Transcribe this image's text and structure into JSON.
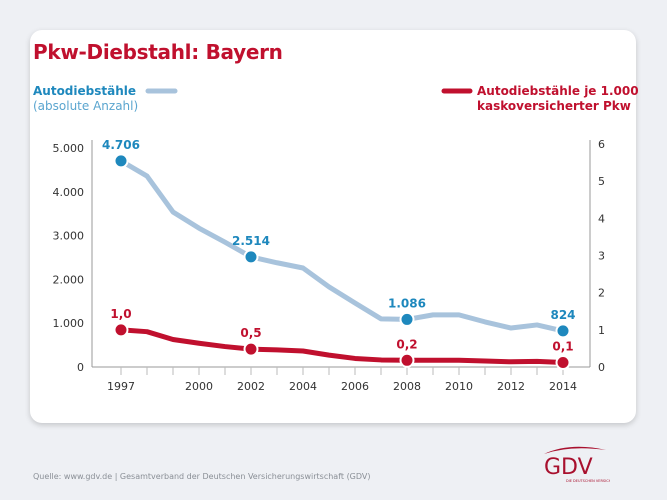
{
  "title": "Pkw-Diebstahl: Bayern",
  "legend": {
    "left_line1": "Autodiebstähle",
    "left_line2": "(absolute Anzahl)",
    "right_line1": "Autodiebstähle je 1.000",
    "right_line2": "kaskoversicherter Pkw"
  },
  "source": "Quelle: www.gdv.de | Gesamtverband der Deutschen Versicherungswirtschaft (GDV)",
  "logo": {
    "text": "GDV",
    "subtitle": "DIE DEUTSCHEN VERSICHERER"
  },
  "colors": {
    "blue_line": "#a8c3dc",
    "blue_marker": "#1e88bd",
    "red": "#c0102e"
  },
  "chart_data": {
    "type": "line",
    "title": "Pkw-Diebstahl: Bayern",
    "x": [
      1997,
      1998,
      1999,
      2000,
      2001,
      2002,
      2003,
      2004,
      2005,
      2006,
      2007,
      2008,
      2009,
      2010,
      2011,
      2012,
      2013,
      2014
    ],
    "x_tick_labels": [
      "1997",
      "2000",
      "2002",
      "2004",
      "2006",
      "2008",
      "2010",
      "2012",
      "2014"
    ],
    "y_left": {
      "range": [
        0,
        5000
      ],
      "ticks": [
        0,
        1000,
        2000,
        3000,
        4000,
        5000
      ],
      "tick_labels": [
        "0",
        "1.000",
        "2.000",
        "3.000",
        "4.000",
        "5.000"
      ]
    },
    "y_right": {
      "range": [
        0,
        6
      ],
      "ticks": [
        0,
        1,
        2,
        3,
        4,
        5,
        6
      ],
      "tick_labels": [
        "0",
        "1",
        "2",
        "3",
        "4",
        "5",
        "6"
      ]
    },
    "series": [
      {
        "name": "Autodiebstähle (absolute Anzahl)",
        "axis": "left",
        "values": [
          4706,
          4360,
          3540,
          3170,
          2850,
          2514,
          2380,
          2260,
          1830,
          1460,
          1100,
          1086,
          1190,
          1190,
          1030,
          890,
          960,
          824
        ],
        "labeled": [
          {
            "x": 1997,
            "label": "4.706"
          },
          {
            "x": 2002,
            "label": "2.514"
          },
          {
            "x": 2008,
            "label": "1.086"
          },
          {
            "x": 2014,
            "label": "824"
          }
        ]
      },
      {
        "name": "Autodiebstähle je 1.000 kaskoversicherter Pkw",
        "axis": "right",
        "values": [
          1.0,
          0.95,
          0.74,
          0.64,
          0.55,
          0.48,
          0.46,
          0.43,
          0.32,
          0.23,
          0.19,
          0.18,
          0.18,
          0.18,
          0.16,
          0.14,
          0.15,
          0.12
        ],
        "labeled": [
          {
            "x": 1997,
            "label": "1,0"
          },
          {
            "x": 2002,
            "label": "0,5"
          },
          {
            "x": 2008,
            "label": "0,2"
          },
          {
            "x": 2014,
            "label": "0,1"
          }
        ]
      }
    ],
    "grid": false,
    "legend_placement": "top"
  }
}
